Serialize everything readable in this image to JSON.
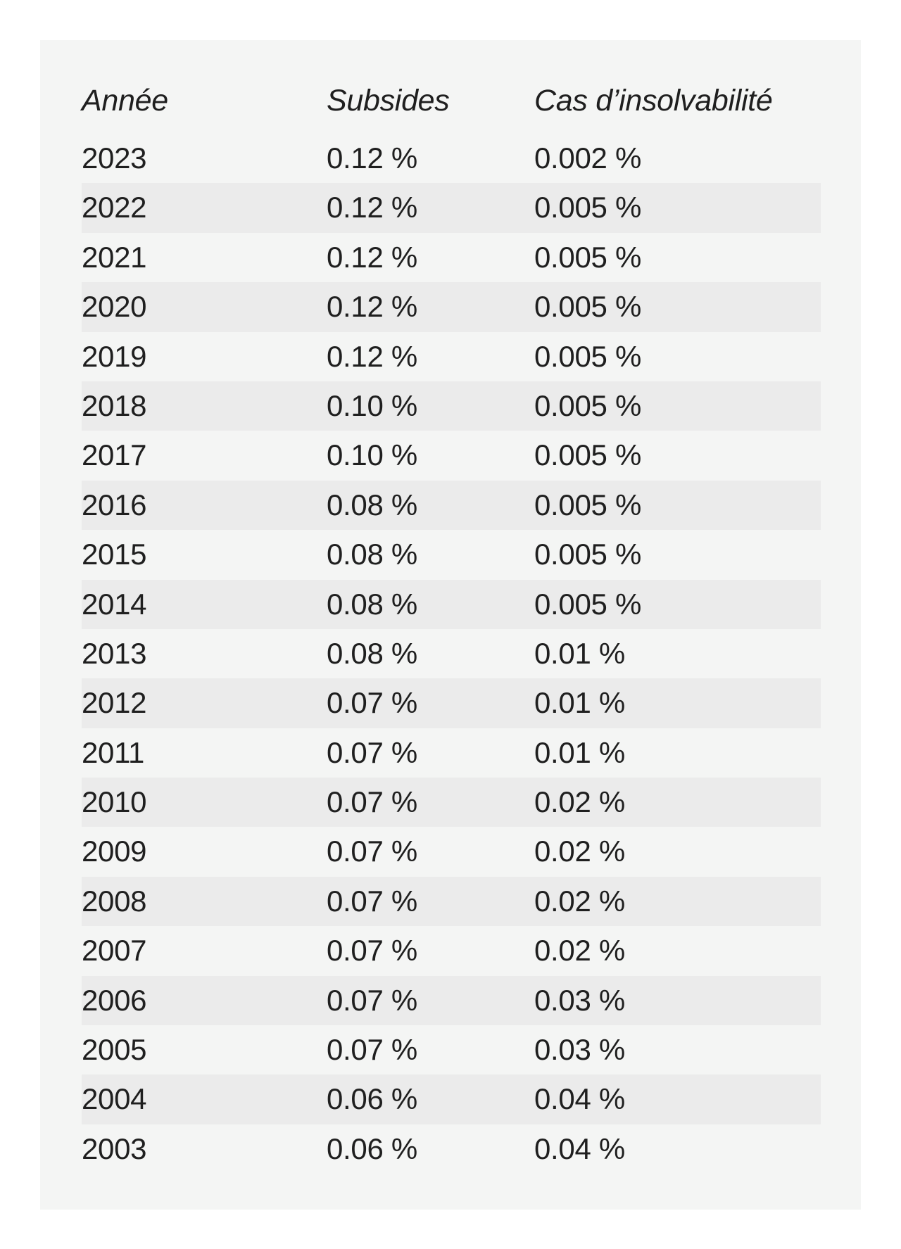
{
  "table": {
    "headers": {
      "year": "Année",
      "subsidies": "Subsides",
      "insolvency": "Cas d’insolvabilité"
    },
    "rows": [
      {
        "year": "2023",
        "subsidies": "0.12 %",
        "insolvency": "0.002 %"
      },
      {
        "year": "2022",
        "subsidies": "0.12 %",
        "insolvency": "0.005 %"
      },
      {
        "year": "2021",
        "subsidies": "0.12 %",
        "insolvency": "0.005 %"
      },
      {
        "year": "2020",
        "subsidies": "0.12 %",
        "insolvency": "0.005 %"
      },
      {
        "year": "2019",
        "subsidies": "0.12 %",
        "insolvency": "0.005 %"
      },
      {
        "year": "2018",
        "subsidies": "0.10 %",
        "insolvency": "0.005 %"
      },
      {
        "year": "2017",
        "subsidies": "0.10 %",
        "insolvency": "0.005 %"
      },
      {
        "year": "2016",
        "subsidies": "0.08 %",
        "insolvency": "0.005 %"
      },
      {
        "year": "2015",
        "subsidies": "0.08 %",
        "insolvency": "0.005 %"
      },
      {
        "year": "2014",
        "subsidies": "0.08 %",
        "insolvency": "0.005 %"
      },
      {
        "year": "2013",
        "subsidies": "0.08 %",
        "insolvency": "0.01 %"
      },
      {
        "year": "2012",
        "subsidies": "0.07 %",
        "insolvency": "0.01 %"
      },
      {
        "year": "2011",
        "subsidies": "0.07 %",
        "insolvency": "0.01 %"
      },
      {
        "year": "2010",
        "subsidies": "0.07 %",
        "insolvency": "0.02 %"
      },
      {
        "year": "2009",
        "subsidies": "0.07 %",
        "insolvency": "0.02 %"
      },
      {
        "year": "2008",
        "subsidies": "0.07 %",
        "insolvency": "0.02 %"
      },
      {
        "year": "2007",
        "subsidies": "0.07 %",
        "insolvency": "0.02 %"
      },
      {
        "year": "2006",
        "subsidies": "0.07 %",
        "insolvency": "0.03 %"
      },
      {
        "year": "2005",
        "subsidies": "0.07 %",
        "insolvency": "0.03 %"
      },
      {
        "year": "2004",
        "subsidies": "0.06 %",
        "insolvency": "0.04 %"
      },
      {
        "year": "2003",
        "subsidies": "0.06 %",
        "insolvency": "0.04 %"
      }
    ]
  },
  "colors": {
    "panel_background": "#f4f5f4",
    "stripe_background": "#ebebeb",
    "text": "#1f1f1f"
  }
}
